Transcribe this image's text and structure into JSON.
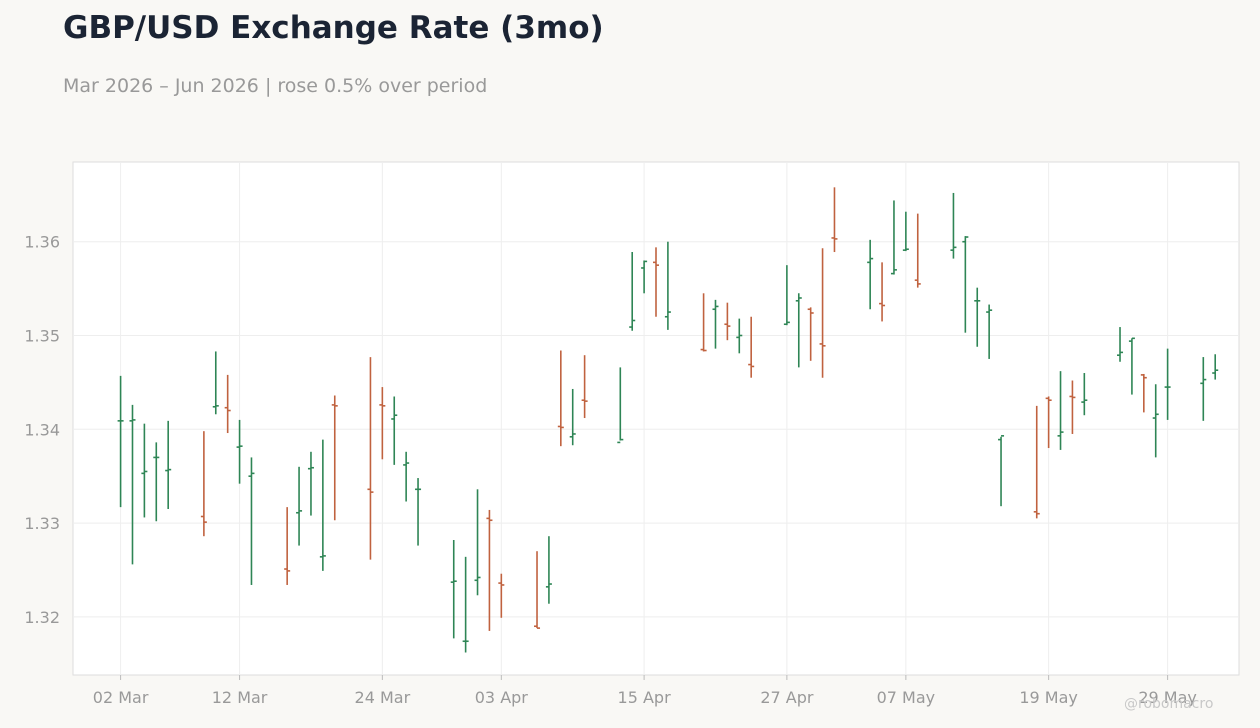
{
  "header": {
    "title": "GBP/USD Exchange Rate (3mo)",
    "subtitle": "Mar 2026 – Jun 2026 | rose 0.5% over period"
  },
  "credit": "@robomacro",
  "colors": {
    "up": "#2e8555",
    "down": "#c0623f",
    "grid": "#eeeeee",
    "axis_text": "#999999",
    "frame": "#dddddd",
    "plot_bg": "#ffffff"
  },
  "chart_data": {
    "type": "ohlc",
    "title": "GBP/USD Exchange Rate (3mo)",
    "subtitle": "Mar 2026 – Jun 2026 | rose 0.5% over period",
    "xlabel": "",
    "ylabel": "",
    "ylim": [
      1.3138,
      1.3685
    ],
    "xlim": [
      "2026-02-26",
      "2026-06-04"
    ],
    "yticks": [
      1.32,
      1.33,
      1.34,
      1.35,
      1.36
    ],
    "ytick_labels": [
      "1.32",
      "1.33",
      "1.34",
      "1.35",
      "1.36"
    ],
    "xticks": [
      "2026-03-02",
      "2026-03-12",
      "2026-03-24",
      "2026-04-03",
      "2026-04-15",
      "2026-04-27",
      "2026-05-07",
      "2026-05-19",
      "2026-05-29"
    ],
    "xtick_labels": [
      "02 Mar",
      "12 Mar",
      "24 Mar",
      "03 Apr",
      "15 Apr",
      "27 Apr",
      "07 May",
      "19 May",
      "29 May"
    ],
    "grid": true,
    "legend": "none",
    "series": [
      {
        "dates": [
          "2026-03-02",
          "2026-03-03",
          "2026-03-04",
          "2026-03-05",
          "2026-03-06",
          "2026-03-09",
          "2026-03-10",
          "2026-03-11",
          "2026-03-12",
          "2026-03-13",
          "2026-03-16",
          "2026-03-17",
          "2026-03-18",
          "2026-03-19",
          "2026-03-20",
          "2026-03-23",
          "2026-03-24",
          "2026-03-25",
          "2026-03-26",
          "2026-03-27",
          "2026-03-30",
          "2026-03-31",
          "2026-04-01",
          "2026-04-02",
          "2026-04-03",
          "2026-04-06",
          "2026-04-07",
          "2026-04-08",
          "2026-04-09",
          "2026-04-10",
          "2026-04-13",
          "2026-04-14",
          "2026-04-15",
          "2026-04-16",
          "2026-04-17",
          "2026-04-20",
          "2026-04-21",
          "2026-04-22",
          "2026-04-23",
          "2026-04-24",
          "2026-04-27",
          "2026-04-28",
          "2026-04-29",
          "2026-04-30",
          "2026-05-01",
          "2026-05-04",
          "2026-05-05",
          "2026-05-06",
          "2026-05-07",
          "2026-05-08",
          "2026-05-11",
          "2026-05-12",
          "2026-05-13",
          "2026-05-14",
          "2026-05-15",
          "2026-05-18",
          "2026-05-19",
          "2026-05-20",
          "2026-05-21",
          "2026-05-22",
          "2026-05-25",
          "2026-05-26",
          "2026-05-27",
          "2026-05-28",
          "2026-05-29",
          "2026-06-01",
          "2026-06-02"
        ],
        "open": [
          1.3409,
          1.3409,
          1.3353,
          1.337,
          1.3356,
          1.3307,
          1.3424,
          1.3423,
          1.3381,
          1.335,
          1.3251,
          1.3311,
          1.3358,
          1.3264,
          1.3426,
          1.3336,
          1.3426,
          1.3411,
          1.3362,
          1.3336,
          1.3237,
          1.3174,
          1.3239,
          1.3305,
          1.3236,
          1.319,
          1.3232,
          1.3403,
          1.3392,
          1.3431,
          1.3386,
          1.3509,
          1.3572,
          1.3578,
          1.352,
          1.3485,
          1.3528,
          1.3512,
          1.3498,
          1.3469,
          1.3512,
          1.3537,
          1.3528,
          1.3491,
          1.3604,
          1.3578,
          1.3534,
          1.3566,
          1.3591,
          1.3559,
          1.3591,
          1.36,
          1.3537,
          1.3525,
          1.3389,
          1.3312,
          1.3433,
          1.3393,
          1.3435,
          1.3429,
          1.3479,
          1.3494,
          1.3458,
          1.3412,
          1.3445,
          1.3449,
          1.346
        ],
        "high": [
          1.3457,
          1.3426,
          1.3406,
          1.3386,
          1.3409,
          1.3398,
          1.3483,
          1.3458,
          1.341,
          1.337,
          1.3317,
          1.336,
          1.3376,
          1.3389,
          1.3436,
          1.3477,
          1.3445,
          1.3435,
          1.3376,
          1.3348,
          1.3282,
          1.3264,
          1.3336,
          1.3314,
          1.3246,
          1.327,
          1.3286,
          1.3484,
          1.3443,
          1.3479,
          1.3466,
          1.3589,
          1.358,
          1.3594,
          1.36,
          1.3545,
          1.3538,
          1.3535,
          1.3518,
          1.352,
          1.3575,
          1.3545,
          1.353,
          1.3593,
          1.3658,
          1.3602,
          1.3578,
          1.3644,
          1.3632,
          1.363,
          1.3652,
          1.3606,
          1.3551,
          1.3533,
          1.3392,
          1.3425,
          1.3435,
          1.3462,
          1.3452,
          1.346,
          1.3509,
          1.3497,
          1.3459,
          1.3448,
          1.3486,
          1.3477,
          1.348
        ],
        "low": [
          1.3317,
          1.3256,
          1.3306,
          1.3302,
          1.3315,
          1.3286,
          1.3416,
          1.3396,
          1.3342,
          1.3234,
          1.3234,
          1.3276,
          1.3308,
          1.3249,
          1.3303,
          1.3261,
          1.3368,
          1.3362,
          1.3323,
          1.3276,
          1.3177,
          1.3162,
          1.3223,
          1.3185,
          1.3199,
          1.3188,
          1.3214,
          1.3382,
          1.3383,
          1.3412,
          1.3388,
          1.3505,
          1.3545,
          1.352,
          1.3506,
          1.3483,
          1.3486,
          1.3495,
          1.3481,
          1.3455,
          1.3511,
          1.3466,
          1.3473,
          1.3455,
          1.3589,
          1.3528,
          1.3515,
          1.3565,
          1.359,
          1.3551,
          1.3582,
          1.3503,
          1.3488,
          1.3475,
          1.3318,
          1.3305,
          1.338,
          1.3378,
          1.3395,
          1.3415,
          1.3472,
          1.3437,
          1.3418,
          1.337,
          1.341,
          1.3409,
          1.3453
        ],
        "close": [
          1.3409,
          1.341,
          1.3355,
          1.337,
          1.3357,
          1.3301,
          1.3425,
          1.342,
          1.3382,
          1.3353,
          1.3249,
          1.3313,
          1.3359,
          1.3265,
          1.3425,
          1.3333,
          1.3425,
          1.3415,
          1.3364,
          1.3336,
          1.3238,
          1.3174,
          1.3242,
          1.3303,
          1.3234,
          1.3188,
          1.3235,
          1.3402,
          1.3395,
          1.343,
          1.3389,
          1.3516,
          1.3579,
          1.3575,
          1.3525,
          1.3484,
          1.3531,
          1.351,
          1.35,
          1.3467,
          1.3514,
          1.354,
          1.3524,
          1.3489,
          1.3603,
          1.3582,
          1.3532,
          1.357,
          1.3592,
          1.3555,
          1.3594,
          1.3605,
          1.3537,
          1.3527,
          1.3393,
          1.331,
          1.3431,
          1.3397,
          1.3434,
          1.3431,
          1.3482,
          1.3497,
          1.3455,
          1.3416,
          1.3445,
          1.3453,
          1.3463
        ]
      }
    ]
  }
}
